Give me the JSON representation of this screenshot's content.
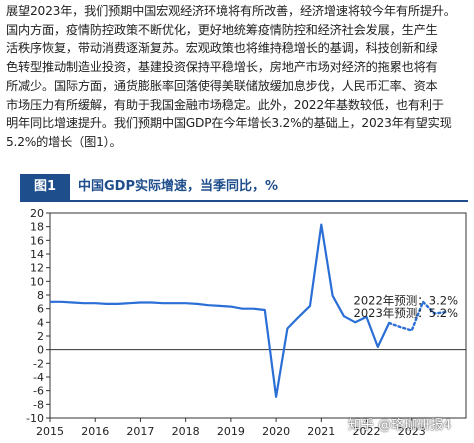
{
  "text": {
    "paragraph_lines": [
      "展望2023年，我们预期中国宏观经济环境将有所改善，经济增速将较今年有所提升。",
      "国内方面，疫情防控政策不断优化，更好地统筹疫情防控和经济社会发展，生产生",
      "活秩序恢复，带动消费逐渐复苏。宏观政策也将维持稳增长的基调，科技创新和绿",
      "色转型推动制造业投资，基建投资保持平稳增长，房地产市场对经济的拖累也将有",
      "所减少。国际方面，通货膨胀率回落使得美联储放缓加息步伐，人民币汇率、资本",
      "市场压力有所缓解，有助于我国金融市场稳定。此外，2022年基数较低，也有利于",
      "明年同比增速提升。我们预期中国GDP在今年增长3.2%的基础上，2023年有望实现",
      "5.2%的增长（图1）。"
    ]
  },
  "figure": {
    "tag": "图1",
    "title": "中国GDP实际增速，当季同比，%"
  },
  "watermark": "知乎 @珞珈研报4",
  "colors": {
    "brand": "#1f4e8c",
    "line": "#2a6ed6",
    "axis": "#333333"
  },
  "chart_data": {
    "type": "line",
    "title": "中国GDP实际增速，当季同比，%",
    "ylim": [
      -10,
      20
    ],
    "yticks": [
      -10,
      -8,
      -6,
      -4,
      -2,
      0,
      2,
      4,
      6,
      8,
      10,
      12,
      14,
      16,
      18,
      20
    ],
    "xlim": [
      2015,
      2024.2
    ],
    "xticks": [
      2015,
      2016,
      2017,
      2018,
      2019,
      2020,
      2021,
      2022,
      2023
    ],
    "grid": false,
    "series": [
      {
        "style": "solid",
        "points": [
          [
            2015.0,
            7.0
          ],
          [
            2015.25,
            7.0
          ],
          [
            2015.5,
            6.9
          ],
          [
            2015.75,
            6.8
          ],
          [
            2016.0,
            6.8
          ],
          [
            2016.25,
            6.7
          ],
          [
            2016.5,
            6.7
          ],
          [
            2016.75,
            6.8
          ],
          [
            2017.0,
            6.9
          ],
          [
            2017.25,
            6.9
          ],
          [
            2017.5,
            6.8
          ],
          [
            2017.75,
            6.8
          ],
          [
            2018.0,
            6.8
          ],
          [
            2018.25,
            6.7
          ],
          [
            2018.5,
            6.5
          ],
          [
            2018.75,
            6.4
          ],
          [
            2019.0,
            6.3
          ],
          [
            2019.25,
            6.0
          ],
          [
            2019.5,
            6.0
          ],
          [
            2019.75,
            5.8
          ],
          [
            2020.0,
            -6.9
          ],
          [
            2020.25,
            3.1
          ],
          [
            2020.5,
            4.8
          ],
          [
            2020.75,
            6.4
          ],
          [
            2021.0,
            18.3
          ],
          [
            2021.25,
            7.9
          ],
          [
            2021.5,
            4.9
          ],
          [
            2021.75,
            4.0
          ],
          [
            2022.0,
            4.8
          ],
          [
            2022.25,
            0.4
          ],
          [
            2022.5,
            3.9
          ]
        ]
      },
      {
        "style": "dotted",
        "points": [
          [
            2022.5,
            3.9
          ],
          [
            2022.75,
            3.3
          ],
          [
            2023.0,
            2.8
          ],
          [
            2023.25,
            7.0
          ],
          [
            2023.5,
            5.3
          ],
          [
            2023.75,
            5.5
          ]
        ]
      }
    ],
    "annotations": [
      "2022年预测：3.2%",
      "2023年预测：5.2%"
    ]
  }
}
